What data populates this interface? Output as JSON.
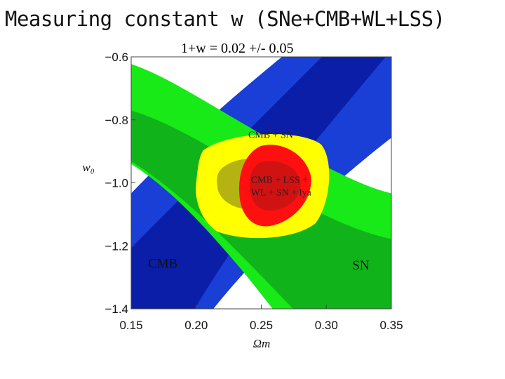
{
  "slide": {
    "title": "Measuring constant w (SNe+CMB+WL+LSS)",
    "subtitle": "1+w =  0.02 +/- 0.05"
  },
  "chart_data": {
    "type": "contour",
    "xlabel": "Ωm",
    "ylabel": "w₀",
    "xlim": [
      0.15,
      0.35
    ],
    "ylim": [
      -1.4,
      -0.6
    ],
    "xticks": [
      "0.15",
      "0.20",
      "0.25",
      "0.30",
      "0.35"
    ],
    "yticks": [
      "−0.6",
      "−0.8",
      "−1.0",
      "−1.2",
      "−1.4"
    ],
    "regions": [
      {
        "label": "CMB",
        "label_pos": [
          0.163,
          -1.27
        ]
      },
      {
        "label": "SN",
        "label_pos": [
          0.32,
          -1.275
        ]
      },
      {
        "label": "CMB + SN",
        "label_pos": [
          0.24,
          -0.857
        ]
      },
      {
        "label_lines": [
          "CMB + LSS +",
          "WL + SN + lya"
        ],
        "label_pos": [
          0.242,
          -1.0
        ]
      }
    ],
    "colors": {
      "cmb_outer": "#1a3fd6",
      "cmb_inner": "#0a1ea8",
      "sn_outer": "#18ea18",
      "sn_inner": "#10b41a",
      "combo_outer": "#ffff00",
      "combo_inner": "#b5b312",
      "all_outer": "#ff1010",
      "all_inner": "#d01212"
    },
    "grid": false
  }
}
